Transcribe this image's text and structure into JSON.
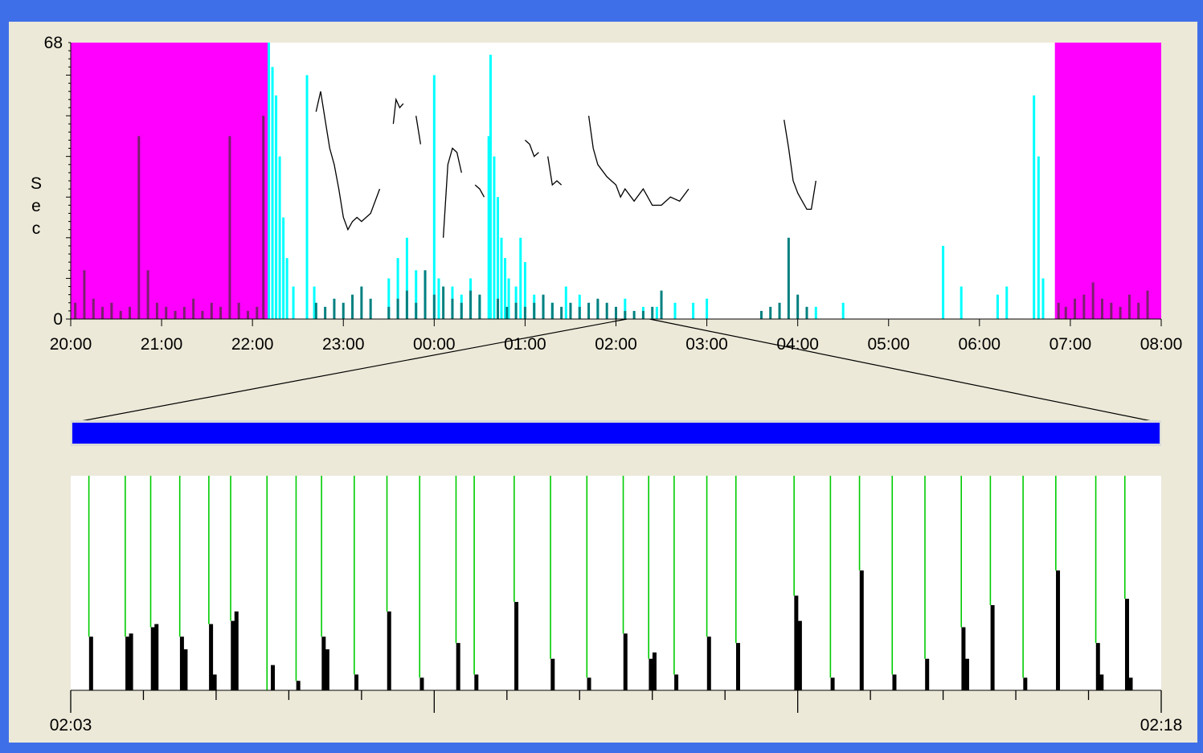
{
  "colors": {
    "window_border": "#3f6fe8",
    "panel_bg": "#ece9d8",
    "excluded_region": "#ff00ff",
    "excluded_bars": "#7b1f6e",
    "cyan_bars": "#00ffff",
    "teal_bars": "#008080",
    "trace_line": "#000000",
    "zoom_bar": "#0000ff",
    "marker_line": "#00cc00",
    "detail_bars": "#000000"
  },
  "chart_data": [
    {
      "type": "bar",
      "ylabel": "Sec",
      "ylim": [
        0,
        68
      ],
      "y_ticks": [
        "0",
        "68"
      ],
      "x_range_hours": [
        0,
        12
      ],
      "x_ticks": [
        "20:00",
        "21:00",
        "22:00",
        "23:00",
        "00:00",
        "01:00",
        "02:00",
        "03:00",
        "04:00",
        "05:00",
        "06:00",
        "07:00",
        "08:00"
      ],
      "excluded_ranges_hours": [
        [
          0,
          2.17
        ],
        [
          10.83,
          12
        ]
      ],
      "zoom_window_hours": [
        6.12,
        6.37
      ],
      "series": [
        {
          "color_key": "excluded_bars",
          "x_hours": [
            0.05,
            0.15,
            0.25,
            0.35,
            0.45,
            0.55,
            0.65,
            0.75,
            0.85,
            0.95,
            1.05,
            1.15,
            1.25,
            1.35,
            1.45,
            1.55,
            1.65,
            1.75,
            1.85,
            1.95,
            2.05,
            2.12,
            10.87,
            10.95,
            11.05,
            11.15,
            11.25,
            11.35,
            11.45,
            11.55,
            11.65,
            11.75,
            11.85
          ],
          "values": [
            4,
            12,
            5,
            3,
            4,
            2,
            3,
            45,
            12,
            4,
            3,
            2,
            3,
            5,
            2,
            4,
            3,
            45,
            4,
            2,
            3,
            50,
            4,
            3,
            5,
            6,
            9,
            5,
            4,
            3,
            6,
            4,
            7
          ]
        },
        {
          "color_key": "cyan_bars",
          "x_hours": [
            2.18,
            2.22,
            2.26,
            2.3,
            2.34,
            2.38,
            2.45,
            2.6,
            2.68,
            3.5,
            3.6,
            3.7,
            3.8,
            4.0,
            4.05,
            4.2,
            4.3,
            4.4,
            4.5,
            4.6,
            4.62,
            4.66,
            4.7,
            4.74,
            4.78,
            4.82,
            4.9,
            4.95,
            5.0,
            5.1,
            5.2,
            5.3,
            5.45,
            5.6,
            5.8,
            6.1,
            6.3,
            6.45,
            6.65,
            6.85,
            7.0,
            8.2,
            8.5,
            9.6,
            9.8,
            10.2,
            10.3,
            10.6,
            10.65,
            10.7
          ],
          "values": [
            68,
            62,
            55,
            40,
            25,
            15,
            8,
            60,
            8,
            10,
            15,
            20,
            12,
            60,
            10,
            8,
            6,
            10,
            5,
            45,
            65,
            40,
            30,
            20,
            15,
            10,
            8,
            20,
            14,
            6,
            5,
            4,
            8,
            6,
            4,
            5,
            3,
            3,
            4,
            4,
            5,
            3,
            4,
            18,
            8,
            6,
            8,
            55,
            40,
            10
          ]
        },
        {
          "color_key": "teal_bars",
          "x_hours": [
            2.7,
            2.8,
            2.9,
            3.0,
            3.1,
            3.2,
            3.3,
            3.5,
            3.6,
            3.7,
            3.8,
            3.9,
            4.0,
            4.1,
            4.2,
            4.3,
            4.4,
            4.5,
            4.7,
            4.8,
            4.9,
            5.0,
            5.1,
            5.2,
            5.3,
            5.4,
            5.5,
            5.6,
            5.7,
            5.8,
            5.9,
            6.0,
            6.1,
            6.2,
            6.3,
            6.4,
            6.5,
            7.6,
            7.7,
            7.8,
            7.9,
            8.0,
            8.1
          ],
          "values": [
            4,
            3,
            5,
            4,
            6,
            8,
            5,
            3,
            5,
            7,
            4,
            12,
            6,
            8,
            5,
            4,
            7,
            6,
            5,
            3,
            4,
            3,
            4,
            6,
            4,
            3,
            4,
            3,
            4,
            5,
            4,
            3,
            2,
            2,
            2,
            3,
            7,
            2,
            3,
            4,
            20,
            6,
            3
          ]
        },
        {
          "color_key": "trace_line",
          "segments": [
            {
              "x_hours": [
                2.7,
                2.75,
                2.8,
                2.85,
                2.9,
                2.95,
                3.0,
                3.05,
                3.1,
                3.15,
                3.2,
                3.3,
                3.4
              ],
              "values": [
                51,
                56,
                49,
                42,
                38,
                32,
                25,
                22,
                24,
                25,
                24,
                26,
                32
              ]
            },
            {
              "x_hours": [
                3.55,
                3.58,
                3.62,
                3.66
              ],
              "values": [
                48,
                54,
                52,
                53
              ]
            },
            {
              "x_hours": [
                3.8,
                3.85
              ],
              "values": [
                50,
                43
              ]
            },
            {
              "x_hours": [
                4.1,
                4.15,
                4.2,
                4.25,
                4.3
              ],
              "values": [
                20,
                38,
                42,
                41,
                36
              ]
            },
            {
              "x_hours": [
                4.45,
                4.5,
                4.55
              ],
              "values": [
                33,
                32,
                30
              ]
            },
            {
              "x_hours": [
                5.0,
                5.05,
                5.1,
                5.15
              ],
              "values": [
                44,
                43,
                40,
                41
              ]
            },
            {
              "x_hours": [
                5.25,
                5.3,
                5.35,
                5.4
              ],
              "values": [
                40,
                33,
                34,
                33
              ]
            },
            {
              "x_hours": [
                5.7,
                5.75,
                5.8,
                5.9,
                6.0,
                6.05,
                6.1,
                6.2,
                6.3,
                6.35,
                6.4,
                6.5,
                6.6,
                6.7,
                6.8
              ],
              "values": [
                50,
                42,
                38,
                35,
                33,
                30,
                32,
                29,
                32,
                30,
                28,
                28,
                30,
                29,
                32
              ]
            },
            {
              "x_hours": [
                7.85,
                7.9,
                7.95,
                8.0,
                8.05,
                8.1,
                8.15,
                8.2
              ],
              "values": [
                49,
                42,
                34,
                31,
                29,
                27,
                27,
                34
              ]
            }
          ]
        }
      ]
    },
    {
      "type": "bar",
      "x_start_label": "02:03",
      "x_end_label": "02:18",
      "x_range_min": [
        0,
        15
      ],
      "ylim": [
        0,
        68
      ],
      "markers_min": [
        0.25,
        0.75,
        1.1,
        1.5,
        1.9,
        2.2,
        2.7,
        3.1,
        3.45,
        3.9,
        4.35,
        4.8,
        5.3,
        5.55,
        6.1,
        6.6,
        7.1,
        7.6,
        7.95,
        8.3,
        8.75,
        9.15,
        9.95,
        10.45,
        10.85,
        11.3,
        11.75,
        12.25,
        12.65,
        13.1,
        13.55,
        14.1,
        14.5
      ],
      "bars_min": [
        0.28,
        0.78,
        0.83,
        1.13,
        1.18,
        1.53,
        1.58,
        1.93,
        1.98,
        2.23,
        2.28,
        2.78,
        3.13,
        3.48,
        3.53,
        3.93,
        4.38,
        4.83,
        5.33,
        5.58,
        6.13,
        6.63,
        7.13,
        7.63,
        7.98,
        8.03,
        8.33,
        8.78,
        9.18,
        9.98,
        10.03,
        10.48,
        10.88,
        11.33,
        11.78,
        12.28,
        12.33,
        12.68,
        13.13,
        13.58,
        14.13,
        14.18,
        14.53,
        14.58
      ],
      "bar_values": [
        17,
        17,
        18,
        20,
        21,
        17,
        13,
        21,
        5,
        22,
        25,
        8,
        3,
        17,
        13,
        5,
        25,
        4,
        15,
        5,
        28,
        10,
        4,
        18,
        10,
        12,
        5,
        17,
        15,
        30,
        22,
        4,
        38,
        5,
        10,
        20,
        10,
        27,
        4,
        38,
        15,
        5,
        29,
        4
      ]
    }
  ]
}
